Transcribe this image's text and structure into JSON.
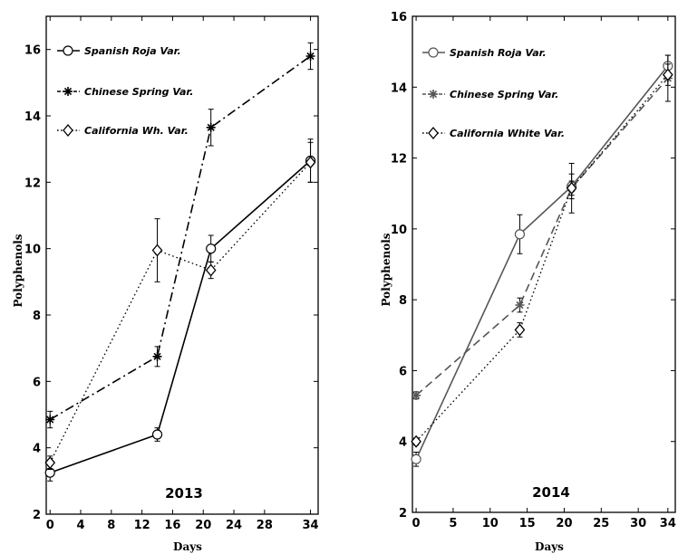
{
  "chart_data": [
    {
      "type": "line",
      "annotation": "2013",
      "xlabel": "Days",
      "ylabel": "Polyphenols",
      "xlim": [
        -0.5,
        35
      ],
      "ylim": [
        2,
        17
      ],
      "xticks": [
        "0",
        "4",
        "8",
        "12",
        "16",
        "20",
        "24",
        "28",
        "34"
      ],
      "xtick_values": [
        0,
        4,
        8,
        12,
        16,
        20,
        24,
        28,
        34
      ],
      "yticks": [
        "2",
        "4",
        "6",
        "8",
        "10",
        "12",
        "14",
        "16"
      ],
      "ytick_values": [
        2,
        4,
        6,
        8,
        10,
        12,
        14,
        16
      ],
      "grid": false,
      "legend_position": "top-left",
      "x": [
        0,
        14,
        21,
        34
      ],
      "series": [
        {
          "name": "Spanish Roja Var.",
          "values": [
            3.25,
            4.4,
            10.0,
            12.65
          ],
          "errors": [
            0.25,
            0.2,
            0.4,
            0.65
          ],
          "marker": "circle",
          "line": "solid",
          "color": "#000000"
        },
        {
          "name": "Chinese Spring Var.",
          "values": [
            4.85,
            6.75,
            13.65,
            15.8
          ],
          "errors": [
            0.25,
            0.3,
            0.55,
            0.4
          ],
          "marker": "star",
          "line": "dashdot",
          "color": "#000000"
        },
        {
          "name": "California Wh. Var.",
          "values": [
            3.55,
            9.95,
            9.35,
            12.6
          ],
          "errors": [
            0.2,
            0.95,
            0.25,
            0.6
          ],
          "marker": "diamond",
          "line": "dotted",
          "color": "#000000"
        }
      ]
    },
    {
      "type": "line",
      "annotation": "2014",
      "xlabel": "Days",
      "ylabel": "Polyphenols",
      "xlim": [
        -0.5,
        35
      ],
      "ylim": [
        2,
        16
      ],
      "xticks": [
        "0",
        "5",
        "10",
        "15",
        "20",
        "25",
        "30",
        "34"
      ],
      "xtick_values": [
        0,
        5,
        10,
        15,
        20,
        25,
        30,
        34
      ],
      "yticks": [
        "2",
        "4",
        "6",
        "8",
        "10",
        "12",
        "14",
        "16"
      ],
      "ytick_values": [
        2,
        4,
        6,
        8,
        10,
        12,
        14,
        16
      ],
      "grid": false,
      "legend_position": "top-left",
      "x": [
        0,
        14,
        21,
        34
      ],
      "series": [
        {
          "name": "Spanish Roja Var.",
          "values": [
            3.5,
            9.85,
            11.2,
            14.6
          ],
          "errors": [
            0.2,
            0.55,
            0.35,
            0.3
          ],
          "marker": "circle",
          "line": "solid",
          "color": "#555555"
        },
        {
          "name": "Chinese Spring Var.",
          "values": [
            5.3,
            7.85,
            11.15,
            14.25
          ],
          "errors": [
            0.1,
            0.2,
            0.7,
            0.65
          ],
          "marker": "star",
          "line": "dashed",
          "color": "#555555"
        },
        {
          "name": "California White Var.",
          "values": [
            4.0,
            7.15,
            11.15,
            14.35
          ],
          "errors": [
            0.1,
            0.2,
            0.2,
            0.3
          ],
          "marker": "diamond",
          "line": "dotted",
          "color": "#000000"
        }
      ]
    }
  ]
}
